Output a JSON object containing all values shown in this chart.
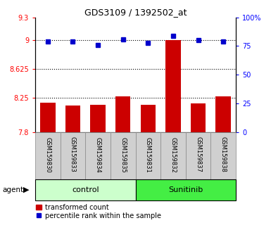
{
  "title": "GDS3109 / 1392502_at",
  "samples": [
    "GSM159830",
    "GSM159833",
    "GSM159834",
    "GSM159835",
    "GSM159831",
    "GSM159832",
    "GSM159837",
    "GSM159838"
  ],
  "bar_values": [
    8.18,
    8.15,
    8.16,
    8.27,
    8.16,
    9.0,
    8.17,
    8.27
  ],
  "percentile_values": [
    79,
    79,
    76,
    81,
    78,
    84,
    80,
    79
  ],
  "ylim_left": [
    7.8,
    9.3
  ],
  "ylim_right": [
    0,
    100
  ],
  "yticks_left": [
    7.8,
    8.25,
    8.625,
    9.0,
    9.3
  ],
  "ytick_labels_left": [
    "7.8",
    "8.25",
    "8.625",
    "9",
    "9.3"
  ],
  "yticks_right": [
    0,
    25,
    50,
    75,
    100
  ],
  "ytick_labels_right": [
    "0",
    "25",
    "50",
    "75",
    "100%"
  ],
  "hlines": [
    9.0,
    8.625,
    8.25
  ],
  "bar_color": "#cc0000",
  "dot_color": "#0000cc",
  "control_color": "#ccffcc",
  "sunitinib_color": "#44ee44",
  "label_bar": "transformed count",
  "label_dot": "percentile rank within the sample",
  "agent_label": "agent",
  "control_label": "control",
  "sunitinib_label": "Sunitinib",
  "bar_bottom": 7.8,
  "n_control": 4,
  "n_sunitinib": 4
}
